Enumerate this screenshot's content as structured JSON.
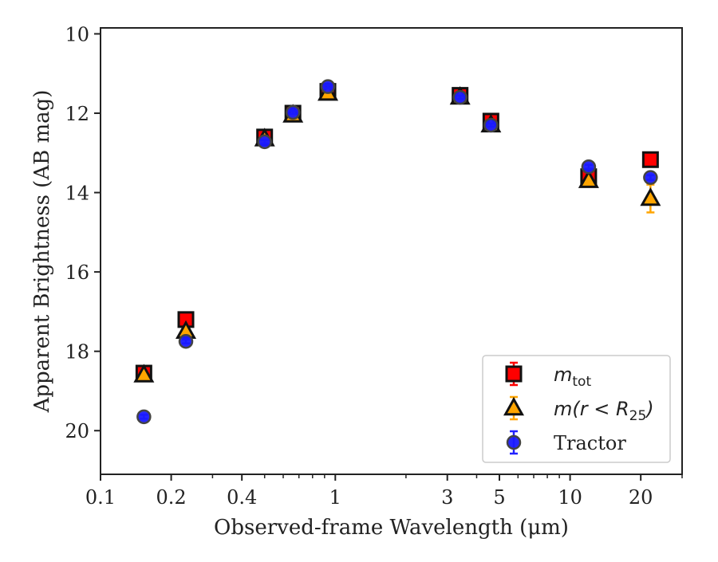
{
  "chart_data": {
    "type": "scatter",
    "title": "",
    "xlabel": "Observed-frame Wavelength (μm)",
    "ylabel": "Apparent Brightness (AB mag)",
    "xscale": "log",
    "yscale": "linear",
    "yinverted": true,
    "xlim": [
      0.1,
      30
    ],
    "ylim": [
      21.1,
      9.85
    ],
    "xticks": [
      {
        "value": 0.1,
        "label": "0.1"
      },
      {
        "value": 0.2,
        "label": "0.2"
      },
      {
        "value": 0.4,
        "label": "0.4"
      },
      {
        "value": 1,
        "label": "1"
      },
      {
        "value": 3,
        "label": "3"
      },
      {
        "value": 5,
        "label": "5"
      },
      {
        "value": 10,
        "label": "10"
      },
      {
        "value": 20,
        "label": "20"
      }
    ],
    "yticks": [
      {
        "value": 10,
        "label": "10"
      },
      {
        "value": 12,
        "label": "12"
      },
      {
        "value": 14,
        "label": "14"
      },
      {
        "value": 16,
        "label": "16"
      },
      {
        "value": 18,
        "label": "18"
      },
      {
        "value": 20,
        "label": "20"
      }
    ],
    "legend_position": "bottom-right",
    "series": [
      {
        "name": "m_tot",
        "legend_main": "m",
        "legend_sub": "tot",
        "legend_rest": "",
        "marker": "square",
        "face_color": "#ff0000",
        "edge_color": "#111111",
        "error_color": "#ff0000",
        "points": [
          {
            "x": 0.153,
            "y": 18.55,
            "err": 0.1
          },
          {
            "x": 0.231,
            "y": 17.2,
            "err": 0.08
          },
          {
            "x": 0.5,
            "y": 12.6,
            "err": 0.05
          },
          {
            "x": 0.66,
            "y": 12.0,
            "err": 0.05
          },
          {
            "x": 0.93,
            "y": 11.45,
            "err": 0.05
          },
          {
            "x": 3.4,
            "y": 11.55,
            "err": 0.05
          },
          {
            "x": 4.6,
            "y": 12.2,
            "err": 0.05
          },
          {
            "x": 12.0,
            "y": 13.6,
            "err": 0.06
          },
          {
            "x": 22.0,
            "y": 13.17,
            "err": 0.08
          }
        ]
      },
      {
        "name": "m(r<R25)",
        "legend_main": "m(r < R",
        "legend_sub": "25",
        "legend_rest": ")",
        "marker": "triangle",
        "face_color": "#ffa500",
        "edge_color": "#111111",
        "error_color": "#ffa500",
        "points": [
          {
            "x": 0.153,
            "y": 18.6,
            "err": 0.08
          },
          {
            "x": 0.231,
            "y": 17.5,
            "err": 0.08
          },
          {
            "x": 0.5,
            "y": 12.65,
            "err": 0.05
          },
          {
            "x": 0.66,
            "y": 12.05,
            "err": 0.05
          },
          {
            "x": 0.93,
            "y": 11.5,
            "err": 0.05
          },
          {
            "x": 3.4,
            "y": 11.6,
            "err": 0.05
          },
          {
            "x": 4.6,
            "y": 12.3,
            "err": 0.05
          },
          {
            "x": 12.0,
            "y": 13.7,
            "err": 0.08
          },
          {
            "x": 22.0,
            "y": 14.15,
            "err": 0.35
          }
        ]
      },
      {
        "name": "Tractor",
        "legend_main": "Tractor",
        "legend_sub": "",
        "legend_rest": "",
        "marker": "circle",
        "face_color": "#1a1aff",
        "edge_color": "#444444",
        "error_color": "#2222ff",
        "points": [
          {
            "x": 0.153,
            "y": 19.65,
            "err": 0.05
          },
          {
            "x": 0.231,
            "y": 17.75,
            "err": 0.05
          },
          {
            "x": 0.5,
            "y": 12.72,
            "err": 0.04
          },
          {
            "x": 0.66,
            "y": 11.98,
            "err": 0.04
          },
          {
            "x": 0.93,
            "y": 11.33,
            "err": 0.04
          },
          {
            "x": 3.4,
            "y": 11.6,
            "err": 0.04
          },
          {
            "x": 4.6,
            "y": 12.3,
            "err": 0.04
          },
          {
            "x": 12.0,
            "y": 13.35,
            "err": 0.05
          },
          {
            "x": 22.0,
            "y": 13.62,
            "err": 0.06
          }
        ]
      }
    ]
  }
}
